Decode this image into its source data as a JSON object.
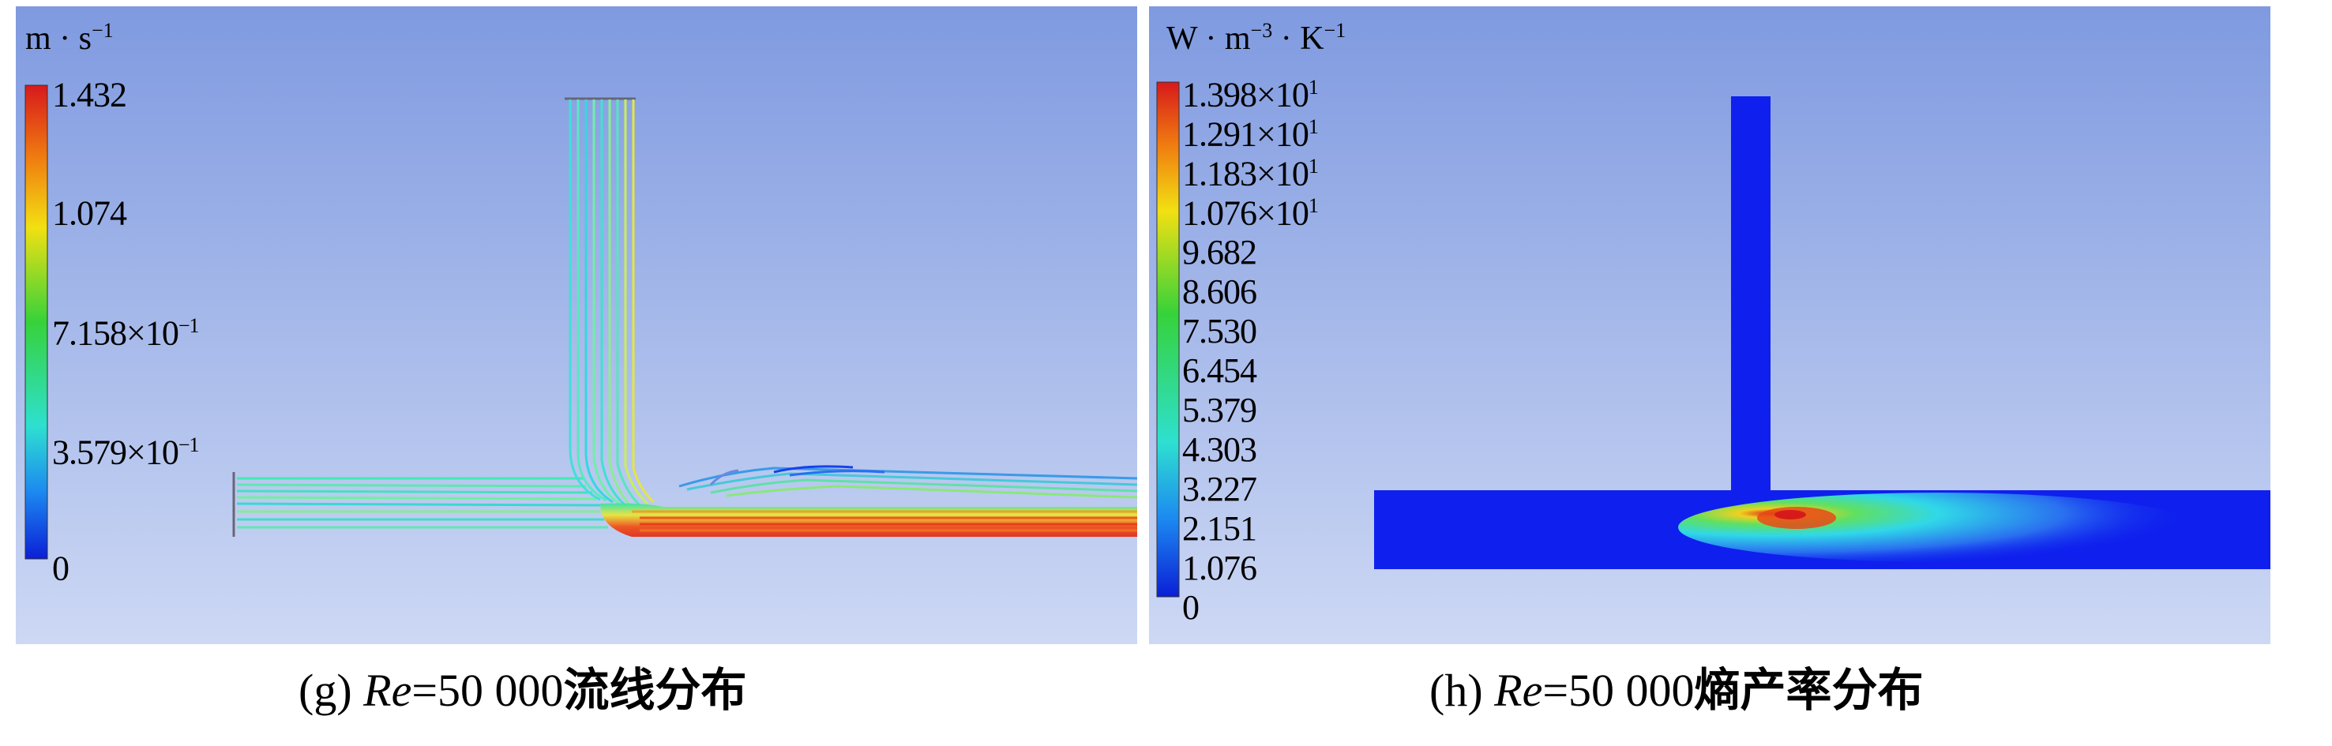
{
  "figures": [
    {
      "id": "g",
      "unit": {
        "base": "m · s",
        "exp": "−1"
      },
      "ticks": [
        {
          "m": "1.432",
          "e": ""
        },
        {
          "m": "1.074",
          "e": ""
        },
        {
          "m": "7.158×10",
          "e": "−1"
        },
        {
          "m": "3.579×10",
          "e": "−1"
        },
        {
          "m": "0",
          "e": ""
        }
      ],
      "caption": {
        "label": "(g) ",
        "re": "Re",
        "value": "=50 000",
        "desc": "流线分布"
      }
    },
    {
      "id": "h",
      "unit": {
        "base": "W · m",
        "exp1": "−3",
        "mid": " · K",
        "exp2": "−1"
      },
      "ticks": [
        {
          "m": "1.398×10",
          "e": "1"
        },
        {
          "m": "1.291×10",
          "e": "1"
        },
        {
          "m": "1.183×10",
          "e": "1"
        },
        {
          "m": "1.076×10",
          "e": "1"
        },
        {
          "m": "9.682",
          "e": ""
        },
        {
          "m": "8.606",
          "e": ""
        },
        {
          "m": "7.530",
          "e": ""
        },
        {
          "m": "6.454",
          "e": ""
        },
        {
          "m": "5.379",
          "e": ""
        },
        {
          "m": "4.303",
          "e": ""
        },
        {
          "m": "3.227",
          "e": ""
        },
        {
          "m": "2.151",
          "e": ""
        },
        {
          "m": "1.076",
          "e": ""
        },
        {
          "m": "0",
          "e": ""
        }
      ],
      "caption": {
        "label": "(h) ",
        "re": "Re",
        "value": "=50 000",
        "desc": "熵产率分布"
      }
    }
  ],
  "colors": {
    "bg_top": "#7f9ae0",
    "bg_bottom": "#cdd8f4",
    "pipe_fill": "#0f20ee",
    "map_max": "#d7191c",
    "map_min": "#0b1fd6"
  }
}
